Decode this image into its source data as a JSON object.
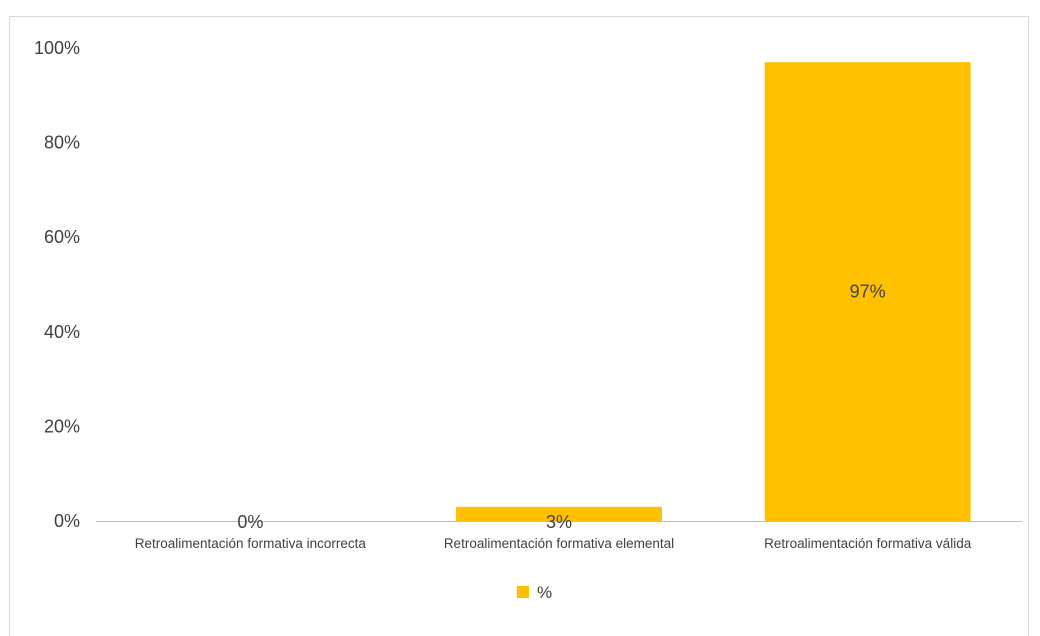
{
  "chart_data": {
    "type": "bar",
    "categories": [
      "Retroalimentación formativa incorrecta",
      "Retroalimentación formativa elemental",
      "Retroalimentación formativa válida"
    ],
    "series": [
      {
        "name": "%",
        "values": [
          0,
          3,
          97
        ],
        "color": "#FFC000"
      }
    ],
    "data_labels": [
      "0%",
      "3%",
      "97%"
    ],
    "yticks": [
      "0%",
      "20%",
      "40%",
      "60%",
      "80%",
      "100%"
    ],
    "ylim": [
      0,
      100
    ],
    "grid": false,
    "legend_position": "bottom"
  }
}
